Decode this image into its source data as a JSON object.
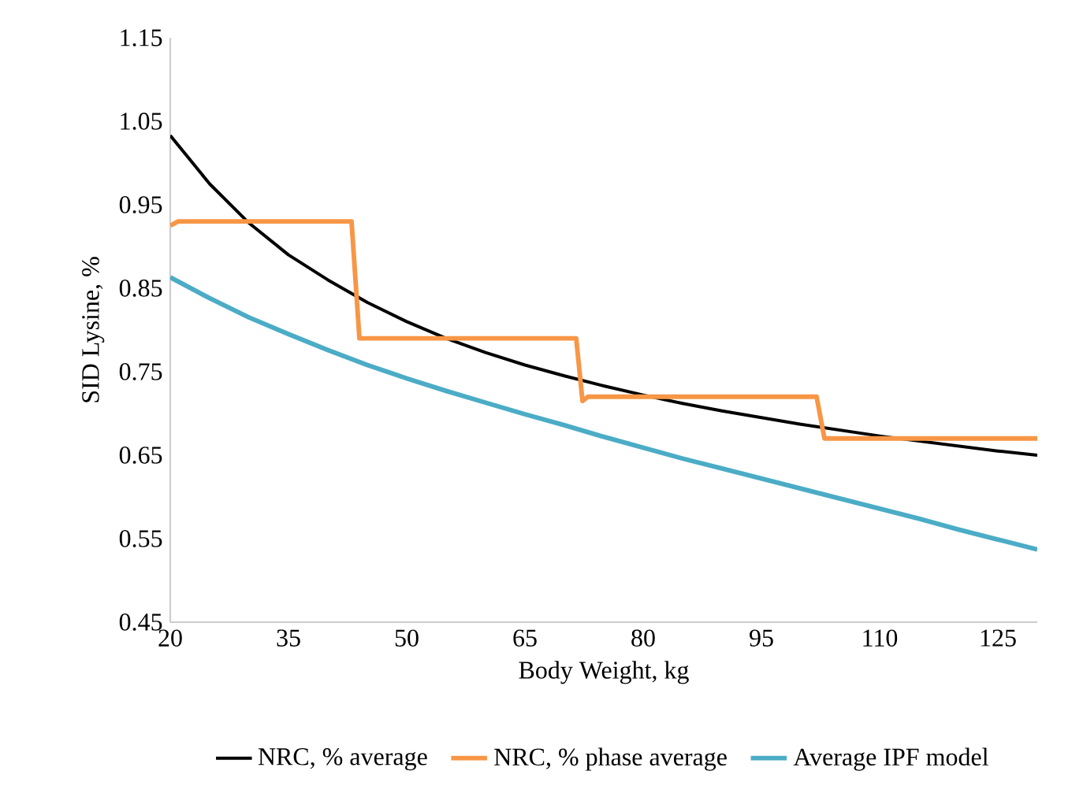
{
  "chart_data": {
    "type": "line",
    "xlabel": "Body Weight, kg",
    "ylabel": "SID Lysine, %",
    "xlim": [
      20,
      130
    ],
    "xticks": [
      20,
      35,
      50,
      65,
      80,
      95,
      110,
      125
    ],
    "ylim": [
      0.45,
      1.15
    ],
    "yticks": [
      0.45,
      0.55,
      0.65,
      0.75,
      0.85,
      0.95,
      1.05,
      1.15
    ],
    "grid": false,
    "legend": "bottom",
    "marker": "none",
    "line_style": "solid",
    "series": [
      {
        "name": "NRC, % average",
        "color": "#000000",
        "x": [
          20,
          25,
          30,
          35,
          40,
          45,
          50,
          55,
          60,
          65,
          70,
          75,
          80,
          85,
          90,
          95,
          100,
          105,
          110,
          115,
          120,
          125,
          130
        ],
        "values": [
          1.033,
          0.975,
          0.928,
          0.89,
          0.86,
          0.833,
          0.81,
          0.79,
          0.773,
          0.758,
          0.745,
          0.733,
          0.722,
          0.712,
          0.703,
          0.695,
          0.687,
          0.68,
          0.673,
          0.667,
          0.661,
          0.655,
          0.65
        ]
      },
      {
        "name": "NRC, % phase average",
        "color": "#f79646",
        "type": "line",
        "x": [
          20,
          21,
          43,
          44,
          71.5,
          72.3,
          73,
          102,
          103,
          130
        ],
        "values": [
          0.925,
          0.93,
          0.93,
          0.79,
          0.79,
          0.715,
          0.72,
          0.72,
          0.67,
          0.67
        ]
      },
      {
        "name": "Average IPF model",
        "color": "#4bacc6",
        "x": [
          20,
          25,
          30,
          35,
          40,
          45,
          50,
          55,
          60,
          65,
          70,
          75,
          80,
          85,
          90,
          95,
          100,
          105,
          110,
          115,
          120,
          125,
          130
        ],
        "values": [
          0.863,
          0.838,
          0.815,
          0.795,
          0.776,
          0.758,
          0.742,
          0.727,
          0.713,
          0.699,
          0.686,
          0.672,
          0.659,
          0.646,
          0.634,
          0.622,
          0.61,
          0.598,
          0.586,
          0.574,
          0.561,
          0.549,
          0.537
        ]
      }
    ]
  }
}
